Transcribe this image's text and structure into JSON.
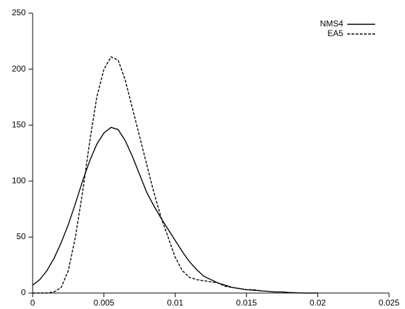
{
  "chart_data": {
    "type": "line",
    "x": [
      0,
      0.0005,
      0.001,
      0.0015,
      0.002,
      0.0025,
      0.003,
      0.0035,
      0.004,
      0.0045,
      0.005,
      0.0055,
      0.006,
      0.0065,
      0.007,
      0.0075,
      0.008,
      0.0085,
      0.009,
      0.0095,
      0.01,
      0.0105,
      0.011,
      0.0115,
      0.012,
      0.0125,
      0.013,
      0.0135,
      0.014,
      0.0145,
      0.015,
      0.0155,
      0.016,
      0.0165,
      0.017,
      0.0175,
      0.018,
      0.0185,
      0.019,
      0.0195,
      0.02
    ],
    "series": [
      {
        "name": "NMS4",
        "color": "#000000",
        "dash": "solid",
        "values": [
          7,
          12,
          20,
          31,
          45,
          61,
          80,
          100,
          118,
          133,
          143,
          148,
          146,
          136,
          122,
          106,
          90,
          78,
          67,
          57,
          47,
          37,
          28,
          21,
          15,
          12,
          9,
          7,
          5,
          4,
          3,
          2.5,
          2,
          1.5,
          1,
          1,
          0.5,
          0.3,
          0,
          0,
          0
        ]
      },
      {
        "name": "EA5",
        "color": "#000000",
        "dash": "dashed",
        "values": [
          0,
          0,
          0,
          1,
          5,
          20,
          50,
          90,
          135,
          175,
          200,
          211,
          208,
          190,
          165,
          140,
          115,
          90,
          68,
          50,
          32,
          20,
          14,
          12,
          11,
          10,
          9,
          6,
          5,
          4,
          3,
          3,
          2,
          null,
          null,
          null,
          null,
          null,
          null,
          null,
          null
        ]
      }
    ],
    "xlim": [
      0,
      0.025
    ],
    "xticks": [
      0,
      0.005,
      0.01,
      0.015,
      0.02,
      0.025
    ],
    "ylim": [
      0,
      250
    ],
    "yticks": [
      0,
      50,
      100,
      150,
      200,
      250
    ],
    "grid": false,
    "legend": "upper right"
  }
}
